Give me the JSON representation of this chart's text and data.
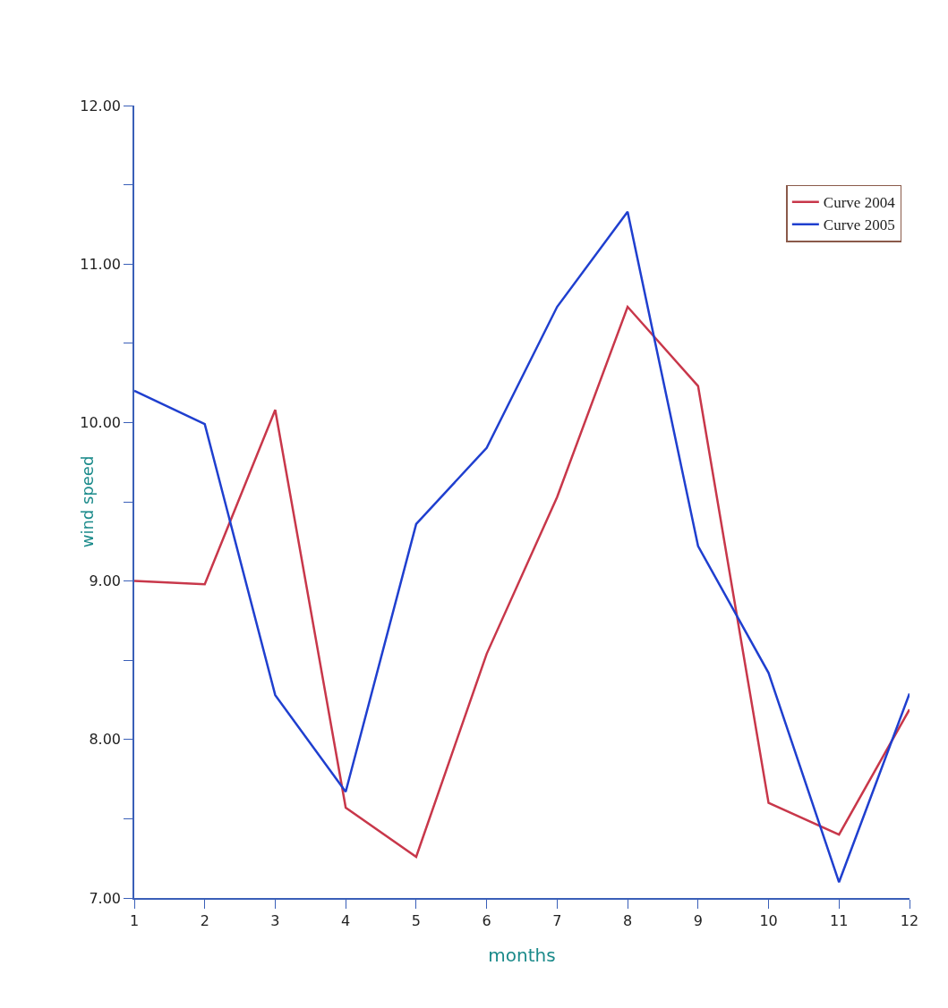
{
  "chart_data": {
    "type": "line",
    "xlabel": "months",
    "ylabel": "wind speed",
    "x": [
      1,
      2,
      3,
      4,
      5,
      6,
      7,
      8,
      9,
      10,
      11,
      12
    ],
    "series": [
      {
        "name": "Curve 2004",
        "color": "#c8374a",
        "values": [
          9.0,
          8.98,
          10.08,
          7.57,
          7.26,
          8.54,
          9.53,
          10.73,
          10.23,
          7.6,
          7.4,
          8.19
        ]
      },
      {
        "name": "Curve 2005",
        "color": "#1f3fcf",
        "values": [
          10.2,
          9.99,
          8.28,
          7.67,
          9.36,
          9.84,
          10.73,
          11.33,
          9.22,
          8.42,
          7.1,
          8.29
        ]
      }
    ],
    "xlim": [
      1,
      12
    ],
    "xticks": [
      1,
      2,
      3,
      4,
      5,
      6,
      7,
      8,
      9,
      10,
      11,
      12
    ],
    "ylim": [
      7,
      12
    ],
    "yticks": [
      {
        "value": 7,
        "label": "7.00"
      },
      {
        "value": 7.5,
        "label": null
      },
      {
        "value": 8,
        "label": "8.00"
      },
      {
        "value": 8.5,
        "label": null
      },
      {
        "value": 9,
        "label": "9.00"
      },
      {
        "value": 9.5,
        "label": null
      },
      {
        "value": 10,
        "label": "10.00"
      },
      {
        "value": 10.5,
        "label": null
      },
      {
        "value": 11,
        "label": "11.00"
      },
      {
        "value": 11.5,
        "label": null
      },
      {
        "value": 12,
        "label": "12.00"
      }
    ],
    "grid": false,
    "legend": "top right",
    "marker": "none",
    "line_style": "solid"
  }
}
